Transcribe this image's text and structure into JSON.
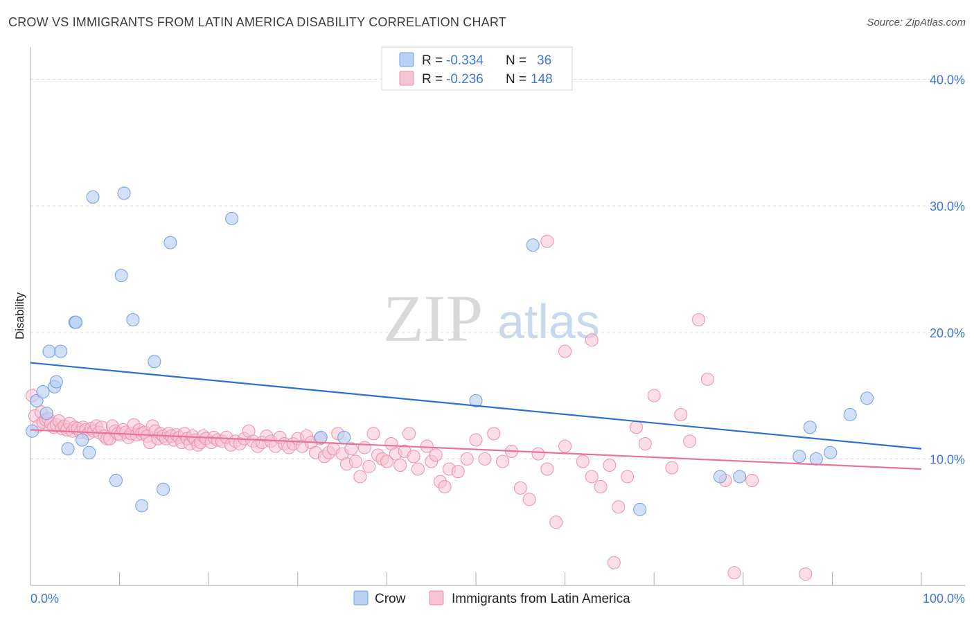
{
  "title": "CROW VS IMMIGRANTS FROM LATIN AMERICA DISABILITY CORRELATION CHART",
  "source": "Source: ZipAtlas.com",
  "watermark": {
    "zip": "ZIP",
    "atlas": "atlas"
  },
  "colors": {
    "crow_fill": "#b8d0f2",
    "crow_stroke": "#6f9fe0",
    "crow_line": "#2a6fd1",
    "latin_fill": "#f8c3d3",
    "latin_stroke": "#ec8fab",
    "latin_line": "#e8729a",
    "grid": "#dddddd",
    "axis_text": "#3d78d8"
  },
  "legend": {
    "rows": [
      {
        "r_label": "R = ",
        "r_value": "-0.334",
        "n_label": "N = ",
        "n_value": "36"
      },
      {
        "r_label": "R = ",
        "r_value": "-0.236",
        "n_label": "N = ",
        "n_value": "148"
      }
    ]
  },
  "chart_data": {
    "type": "scatter",
    "title": "CROW VS IMMIGRANTS FROM LATIN AMERICA DISABILITY CORRELATION CHART",
    "xlabel": "",
    "ylabel": "Disability",
    "xlim": [
      0,
      100
    ],
    "ylim": [
      0,
      42
    ],
    "x_tick_labels": [
      "0.0%",
      "100.0%"
    ],
    "y_ticks": [
      10,
      20,
      30,
      40
    ],
    "y_tick_labels": [
      "10.0%",
      "20.0%",
      "30.0%",
      "40.0%"
    ],
    "grid": true,
    "legend_position": "top-center",
    "series": [
      {
        "name": "Crow",
        "r": -0.334,
        "n": 36,
        "trend": [
          [
            0,
            17.6
          ],
          [
            100,
            10.8
          ]
        ],
        "points": [
          [
            0.2,
            12.2
          ],
          [
            0.7,
            14.6
          ],
          [
            1.4,
            15.3
          ],
          [
            1.8,
            13.6
          ],
          [
            2.1,
            18.5
          ],
          [
            2.7,
            15.7
          ],
          [
            2.9,
            16.1
          ],
          [
            3.4,
            18.5
          ],
          [
            4.2,
            10.8
          ],
          [
            5.0,
            20.8
          ],
          [
            5.1,
            20.8
          ],
          [
            5.8,
            11.5
          ],
          [
            6.6,
            10.5
          ],
          [
            7.0,
            30.7
          ],
          [
            9.6,
            8.3
          ],
          [
            10.2,
            24.5
          ],
          [
            10.5,
            31.0
          ],
          [
            11.5,
            21.0
          ],
          [
            12.5,
            6.3
          ],
          [
            13.9,
            17.7
          ],
          [
            14.9,
            7.6
          ],
          [
            15.7,
            27.1
          ],
          [
            22.6,
            29.0
          ],
          [
            32.6,
            11.7
          ],
          [
            35.2,
            11.7
          ],
          [
            50.0,
            14.6
          ],
          [
            56.4,
            26.9
          ],
          [
            68.4,
            6.0
          ],
          [
            77.4,
            8.6
          ],
          [
            79.6,
            8.6
          ],
          [
            86.3,
            10.2
          ],
          [
            87.5,
            12.5
          ],
          [
            88.2,
            10.0
          ],
          [
            89.8,
            10.5
          ],
          [
            92.0,
            13.5
          ],
          [
            93.9,
            14.8
          ]
        ]
      },
      {
        "name": "Immigrants from Latin America",
        "r": -0.236,
        "n": 148,
        "trend": [
          [
            0,
            12.3
          ],
          [
            100,
            9.2
          ]
        ],
        "points": [
          [
            0.2,
            15.0
          ],
          [
            0.5,
            13.4
          ],
          [
            0.9,
            12.6
          ],
          [
            1.2,
            13.7
          ],
          [
            1.4,
            12.9
          ],
          [
            1.7,
            13.1
          ],
          [
            2.0,
            13.2
          ],
          [
            2.3,
            12.8
          ],
          [
            2.6,
            12.5
          ],
          [
            2.9,
            12.7
          ],
          [
            3.2,
            13.0
          ],
          [
            3.5,
            12.4
          ],
          [
            3.8,
            12.6
          ],
          [
            4.1,
            12.3
          ],
          [
            4.4,
            12.8
          ],
          [
            4.7,
            12.2
          ],
          [
            5.0,
            12.5
          ],
          [
            5.3,
            12.4
          ],
          [
            5.6,
            12.1
          ],
          [
            5.9,
            12.5
          ],
          [
            6.2,
            12.3
          ],
          [
            6.5,
            12.0
          ],
          [
            6.8,
            12.4
          ],
          [
            7.1,
            12.2
          ],
          [
            7.4,
            12.6
          ],
          [
            7.7,
            12.1
          ],
          [
            8.0,
            12.5
          ],
          [
            8.3,
            11.8
          ],
          [
            8.6,
            11.6
          ],
          [
            8.9,
            11.6
          ],
          [
            9.2,
            12.6
          ],
          [
            9.5,
            12.2
          ],
          [
            9.8,
            12.0
          ],
          [
            10.1,
            11.9
          ],
          [
            10.4,
            12.3
          ],
          [
            10.7,
            12.1
          ],
          [
            11.0,
            11.7
          ],
          [
            11.3,
            12.0
          ],
          [
            11.6,
            12.7
          ],
          [
            11.9,
            11.9
          ],
          [
            12.2,
            12.3
          ],
          [
            12.5,
            12.0
          ],
          [
            12.8,
            12.1
          ],
          [
            13.1,
            11.8
          ],
          [
            13.4,
            11.3
          ],
          [
            13.7,
            12.6
          ],
          [
            14.0,
            12.2
          ],
          [
            14.3,
            11.6
          ],
          [
            14.6,
            12.0
          ],
          [
            14.9,
            11.8
          ],
          [
            15.2,
            11.6
          ],
          [
            15.5,
            12.0
          ],
          [
            15.8,
            11.8
          ],
          [
            16.1,
            11.5
          ],
          [
            16.4,
            11.9
          ],
          [
            16.7,
            11.7
          ],
          [
            17.0,
            11.3
          ],
          [
            17.3,
            12.0
          ],
          [
            17.6,
            11.6
          ],
          [
            17.9,
            11.2
          ],
          [
            18.2,
            11.8
          ],
          [
            18.5,
            11.5
          ],
          [
            18.8,
            11.1
          ],
          [
            19.1,
            11.3
          ],
          [
            19.4,
            11.8
          ],
          [
            19.7,
            11.6
          ],
          [
            20.3,
            11.3
          ],
          [
            20.6,
            11.7
          ],
          [
            21.0,
            11.5
          ],
          [
            21.5,
            11.4
          ],
          [
            22.0,
            11.7
          ],
          [
            22.5,
            11.1
          ],
          [
            23.0,
            11.4
          ],
          [
            23.5,
            11.2
          ],
          [
            24.0,
            11.6
          ],
          [
            24.5,
            12.2
          ],
          [
            25.0,
            11.4
          ],
          [
            25.5,
            11.0
          ],
          [
            26.0,
            11.3
          ],
          [
            26.5,
            11.8
          ],
          [
            27.0,
            11.4
          ],
          [
            27.5,
            11.0
          ],
          [
            28.0,
            11.7
          ],
          [
            28.5,
            11.2
          ],
          [
            29.0,
            10.9
          ],
          [
            29.5,
            11.2
          ],
          [
            30.0,
            11.6
          ],
          [
            30.5,
            11.0
          ],
          [
            31.0,
            11.8
          ],
          [
            31.5,
            11.3
          ],
          [
            32.0,
            10.5
          ],
          [
            32.5,
            11.6
          ],
          [
            33.0,
            10.2
          ],
          [
            33.5,
            10.5
          ],
          [
            34.0,
            10.8
          ],
          [
            34.5,
            12.0
          ],
          [
            35.0,
            10.4
          ],
          [
            35.5,
            9.6
          ],
          [
            36.0,
            10.8
          ],
          [
            36.5,
            9.8
          ],
          [
            37.0,
            8.6
          ],
          [
            37.5,
            10.9
          ],
          [
            38.0,
            9.4
          ],
          [
            38.5,
            12.0
          ],
          [
            39.0,
            10.3
          ],
          [
            39.5,
            10.0
          ],
          [
            40.0,
            9.8
          ],
          [
            40.5,
            11.2
          ],
          [
            41.0,
            10.4
          ],
          [
            41.5,
            9.5
          ],
          [
            42.0,
            10.6
          ],
          [
            42.5,
            12.0
          ],
          [
            43.0,
            10.2
          ],
          [
            43.5,
            9.2
          ],
          [
            44.5,
            11.0
          ],
          [
            45.0,
            9.8
          ],
          [
            45.5,
            10.3
          ],
          [
            46.0,
            8.2
          ],
          [
            46.5,
            7.8
          ],
          [
            47.0,
            9.2
          ],
          [
            48.0,
            9.0
          ],
          [
            49.0,
            10.0
          ],
          [
            50.0,
            11.5
          ],
          [
            51.0,
            10.0
          ],
          [
            52.0,
            12.0
          ],
          [
            53.0,
            9.8
          ],
          [
            54.0,
            10.6
          ],
          [
            55.0,
            7.7
          ],
          [
            56.0,
            6.8
          ],
          [
            57.0,
            10.4
          ],
          [
            58.0,
            9.2
          ],
          [
            59.0,
            5.0
          ],
          [
            60.0,
            11.0
          ],
          [
            62.0,
            9.8
          ],
          [
            63.0,
            8.6
          ],
          [
            64.0,
            7.8
          ],
          [
            65.0,
            9.5
          ],
          [
            66.0,
            6.2
          ],
          [
            67.0,
            8.6
          ],
          [
            68.0,
            12.5
          ],
          [
            69.0,
            11.2
          ],
          [
            70.0,
            15.0
          ],
          [
            72.0,
            9.3
          ],
          [
            73.0,
            13.5
          ],
          [
            74.0,
            11.4
          ],
          [
            75.0,
            21.0
          ],
          [
            76.0,
            16.3
          ],
          [
            78.0,
            8.3
          ],
          [
            79.0,
            1.0
          ],
          [
            81.0,
            8.3
          ],
          [
            87.0,
            0.9
          ],
          [
            65.5,
            1.8
          ],
          [
            58.0,
            27.2
          ],
          [
            60.0,
            18.5
          ],
          [
            63.0,
            19.4
          ]
        ]
      }
    ]
  },
  "bottom_legend": [
    "Crow",
    "Immigrants from Latin America"
  ]
}
